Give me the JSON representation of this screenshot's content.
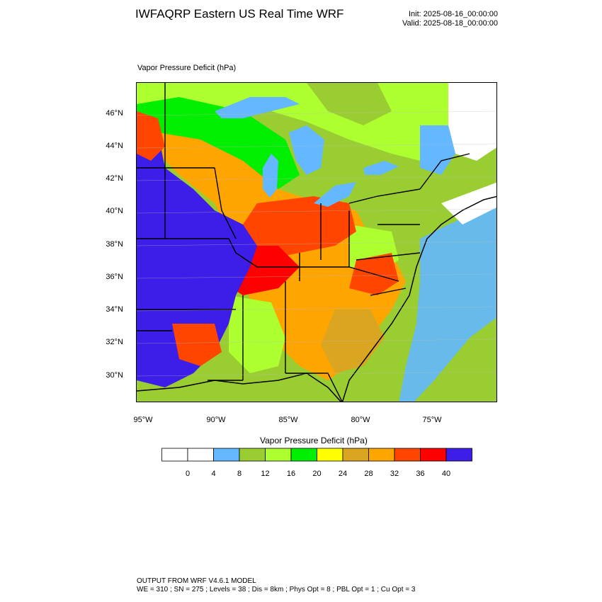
{
  "header": {
    "title": "IWFAQRP Eastern US Real Time WRF",
    "init": "Init: 2025-08-16_00:00:00",
    "valid": "Valid: 2025-08-18_00:00:00"
  },
  "field": {
    "label": "Vapor Pressure Deficit   (hPa)"
  },
  "axes": {
    "lat_labels": [
      "46°N",
      "44°N",
      "42°N",
      "40°N",
      "38°N",
      "36°N",
      "34°N",
      "32°N",
      "30°N"
    ],
    "lon_labels": [
      "95°W",
      "90°W",
      "85°W",
      "80°W",
      "75°W"
    ]
  },
  "colorbar": {
    "title": "Vapor Pressure Deficit  (hPa)",
    "colors": [
      "#ffffff",
      "#ffffff",
      "#63b8ff",
      "#9acd32",
      "#adff2f",
      "#00ee00",
      "#ffff00",
      "#daa520",
      "#ffa500",
      "#ff4500",
      "#ff0000",
      "#3c1ee8"
    ],
    "labels": [
      "0",
      "4",
      "8",
      "12",
      "16",
      "20",
      "24",
      "28",
      "32",
      "36",
      "40"
    ]
  },
  "map": {
    "water_color": "#63b8ff"
  },
  "footer": {
    "line1": "OUTPUT FROM WRF V4.6.1 MODEL",
    "line2": "WE = 310 ; SN = 275 ; Levels = 38 ; Dis = 8km ; Phys Opt = 8 ; PBL Opt = 1 ; Cu Opt = 3"
  }
}
